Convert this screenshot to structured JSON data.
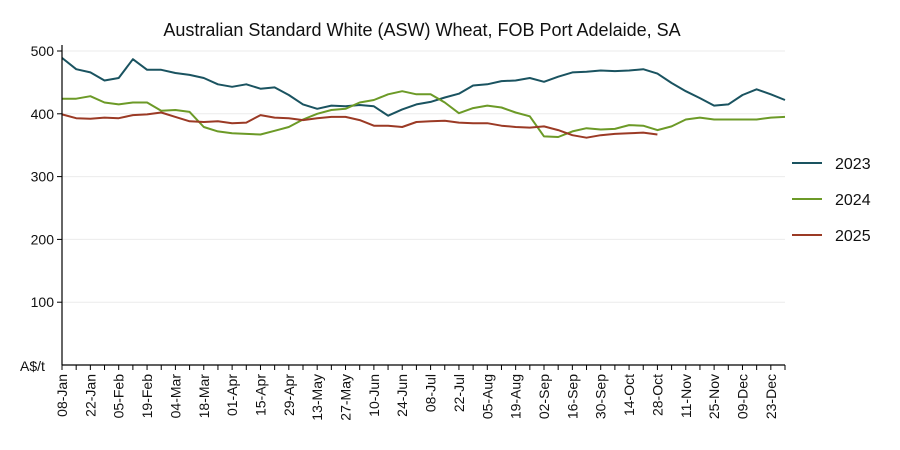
{
  "chart_data": {
    "type": "line",
    "title": "Australian Standard White (ASW) Wheat, FOB Port Adelaide, SA",
    "ylabel": "A$/t",
    "xlabel": "",
    "ylim": [
      0,
      500
    ],
    "yticks": [
      100,
      200,
      300,
      400,
      500
    ],
    "grid": true,
    "legend_position": "right",
    "x_tick_labels": [
      "08-Jan",
      "22-Jan",
      "05-Feb",
      "19-Feb",
      "04-Mar",
      "18-Mar",
      "01-Apr",
      "15-Apr",
      "29-Apr",
      "13-May",
      "27-May",
      "10-Jun",
      "24-Jun",
      "08-Jul",
      "22-Jul",
      "05-Aug",
      "19-Aug",
      "02-Sep",
      "16-Sep",
      "30-Sep",
      "14-Oct",
      "28-Oct",
      "11-Nov",
      "25-Nov",
      "09-Dec",
      "23-Dec"
    ],
    "series": [
      {
        "name": "2023",
        "color": "#1a5360",
        "values": [
          489,
          471,
          466,
          453,
          457,
          487,
          470,
          470,
          465,
          462,
          457,
          447,
          443,
          447,
          440,
          442,
          430,
          415,
          408,
          413,
          412,
          414,
          412,
          397,
          407,
          415,
          419,
          426,
          432,
          445,
          447,
          452,
          453,
          457,
          451,
          459,
          466,
          467,
          469,
          468,
          469,
          471,
          464,
          449,
          436,
          425,
          413,
          415,
          430,
          439,
          431,
          422
        ]
      },
      {
        "name": "2024",
        "color": "#6c9a27",
        "values": [
          424,
          424,
          428,
          418,
          415,
          418,
          418,
          405,
          406,
          403,
          379,
          372,
          369,
          368,
          367,
          373,
          379,
          391,
          400,
          406,
          408,
          418,
          422,
          431,
          436,
          431,
          431,
          418,
          401,
          409,
          413,
          410,
          402,
          396,
          364,
          363,
          372,
          377,
          375,
          376,
          382,
          381,
          374,
          380,
          391,
          394,
          391,
          391,
          391,
          391,
          394,
          395
        ]
      },
      {
        "name": "2025",
        "color": "#9b3a25",
        "values": [
          399,
          393,
          392,
          394,
          393,
          398,
          399,
          402,
          395,
          388,
          387,
          388,
          385,
          386,
          398,
          394,
          393,
          390,
          393,
          395,
          395,
          390,
          381,
          381,
          379,
          387,
          388,
          389,
          386,
          385,
          385,
          381,
          379,
          378,
          380,
          374,
          366,
          362,
          366,
          368,
          369,
          370,
          367
        ]
      }
    ]
  }
}
